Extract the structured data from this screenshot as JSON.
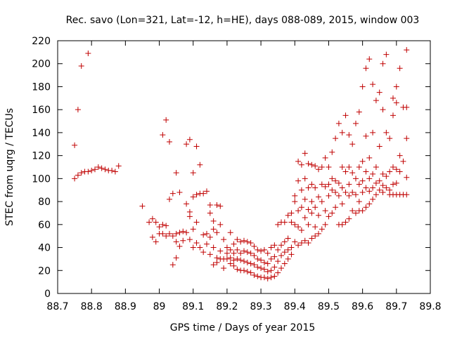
{
  "chart_data": {
    "type": "scatter",
    "title": "Rec. savo (Lon=321, Lat=-12, h=HE), days 088-089, 2015, window 003",
    "xlabel": "GPS time / Days of year 2015",
    "ylabel": "STEC from uqrg / TECUs",
    "xlim": [
      88.7,
      89.8
    ],
    "ylim": [
      0,
      220
    ],
    "xticks": [
      "88.7",
      "88.8",
      "88.9",
      "89",
      "89.1",
      "89.2",
      "89.3",
      "89.4",
      "89.5",
      "89.6",
      "89.7",
      "89.8"
    ],
    "yticks": [
      "0",
      "20",
      "40",
      "60",
      "80",
      "100",
      "120",
      "140",
      "160",
      "180",
      "200",
      "220"
    ],
    "grid": false,
    "legend": "none",
    "marker": "plus",
    "color": "#c00000",
    "points": [
      [
        88.75,
        129
      ],
      [
        88.75,
        100
      ],
      [
        88.76,
        160
      ],
      [
        88.76,
        103
      ],
      [
        88.77,
        198
      ],
      [
        88.77,
        105
      ],
      [
        88.78,
        106
      ],
      [
        88.79,
        209
      ],
      [
        88.79,
        106
      ],
      [
        88.8,
        107
      ],
      [
        88.81,
        108
      ],
      [
        88.82,
        110
      ],
      [
        88.83,
        109
      ],
      [
        88.84,
        108
      ],
      [
        88.85,
        107
      ],
      [
        88.86,
        107
      ],
      [
        88.87,
        106
      ],
      [
        88.88,
        111
      ],
      [
        88.95,
        76
      ],
      [
        88.97,
        62
      ],
      [
        88.98,
        65
      ],
      [
        88.98,
        49
      ],
      [
        88.99,
        62
      ],
      [
        88.99,
        45
      ],
      [
        89.0,
        58
      ],
      [
        89.0,
        52
      ],
      [
        89.01,
        138
      ],
      [
        89.01,
        60
      ],
      [
        89.01,
        52
      ],
      [
        89.02,
        151
      ],
      [
        89.02,
        59
      ],
      [
        89.02,
        50
      ],
      [
        89.03,
        132
      ],
      [
        89.03,
        82
      ],
      [
        89.03,
        52
      ],
      [
        89.04,
        87
      ],
      [
        89.04,
        50
      ],
      [
        89.04,
        25
      ],
      [
        89.05,
        105
      ],
      [
        89.05,
        52
      ],
      [
        89.05,
        31
      ],
      [
        89.05,
        45
      ],
      [
        89.06,
        88
      ],
      [
        89.06,
        53
      ],
      [
        89.06,
        41
      ],
      [
        89.07,
        54
      ],
      [
        89.07,
        46
      ],
      [
        89.08,
        130
      ],
      [
        89.08,
        78
      ],
      [
        89.08,
        53
      ],
      [
        89.09,
        134
      ],
      [
        89.09,
        71
      ],
      [
        89.09,
        67
      ],
      [
        89.09,
        47
      ],
      [
        89.1,
        105
      ],
      [
        89.1,
        84
      ],
      [
        89.1,
        56
      ],
      [
        89.1,
        40
      ],
      [
        89.11,
        128
      ],
      [
        89.11,
        86
      ],
      [
        89.11,
        62
      ],
      [
        89.11,
        44
      ],
      [
        89.12,
        112
      ],
      [
        89.12,
        87
      ],
      [
        89.12,
        40
      ],
      [
        89.13,
        87
      ],
      [
        89.13,
        51
      ],
      [
        89.13,
        36
      ],
      [
        89.14,
        89
      ],
      [
        89.14,
        52
      ],
      [
        89.14,
        43
      ],
      [
        89.15,
        77
      ],
      [
        89.15,
        70
      ],
      [
        89.15,
        49
      ],
      [
        89.15,
        34
      ],
      [
        89.16,
        63
      ],
      [
        89.16,
        56
      ],
      [
        89.16,
        40
      ],
      [
        89.16,
        25
      ],
      [
        89.17,
        77
      ],
      [
        89.17,
        53
      ],
      [
        89.17,
        31
      ],
      [
        89.17,
        27
      ],
      [
        89.18,
        76
      ],
      [
        89.18,
        60
      ],
      [
        89.18,
        37
      ],
      [
        89.18,
        30
      ],
      [
        89.19,
        47
      ],
      [
        89.19,
        30
      ],
      [
        89.19,
        22
      ],
      [
        89.2,
        40
      ],
      [
        89.2,
        35
      ],
      [
        89.2,
        30
      ],
      [
        89.21,
        53
      ],
      [
        89.21,
        38
      ],
      [
        89.21,
        31
      ],
      [
        89.21,
        26
      ],
      [
        89.22,
        43
      ],
      [
        89.22,
        35
      ],
      [
        89.22,
        29
      ],
      [
        89.22,
        24
      ],
      [
        89.23,
        47
      ],
      [
        89.23,
        38
      ],
      [
        89.23,
        30
      ],
      [
        89.23,
        21
      ],
      [
        89.24,
        45
      ],
      [
        89.24,
        35
      ],
      [
        89.24,
        29
      ],
      [
        89.24,
        20
      ],
      [
        89.25,
        46
      ],
      [
        89.25,
        37
      ],
      [
        89.25,
        28
      ],
      [
        89.25,
        20
      ],
      [
        89.26,
        45
      ],
      [
        89.26,
        36
      ],
      [
        89.26,
        27
      ],
      [
        89.26,
        19
      ],
      [
        89.27,
        44
      ],
      [
        89.27,
        35
      ],
      [
        89.27,
        26
      ],
      [
        89.27,
        18
      ],
      [
        89.28,
        41
      ],
      [
        89.28,
        33
      ],
      [
        89.28,
        25
      ],
      [
        89.28,
        16
      ],
      [
        89.29,
        38
      ],
      [
        89.29,
        30
      ],
      [
        89.29,
        23
      ],
      [
        89.29,
        15
      ],
      [
        89.3,
        37
      ],
      [
        89.3,
        29
      ],
      [
        89.3,
        22
      ],
      [
        89.3,
        14
      ],
      [
        89.31,
        38
      ],
      [
        89.31,
        27
      ],
      [
        89.31,
        21
      ],
      [
        89.31,
        14
      ],
      [
        89.32,
        35
      ],
      [
        89.32,
        26
      ],
      [
        89.32,
        19
      ],
      [
        89.32,
        13
      ],
      [
        89.33,
        40
      ],
      [
        89.33,
        30
      ],
      [
        89.33,
        20
      ],
      [
        89.33,
        14
      ],
      [
        89.34,
        42
      ],
      [
        89.34,
        32
      ],
      [
        89.34,
        23
      ],
      [
        89.34,
        15
      ],
      [
        89.35,
        60
      ],
      [
        89.35,
        38
      ],
      [
        89.35,
        28
      ],
      [
        89.35,
        18
      ],
      [
        89.36,
        62
      ],
      [
        89.36,
        42
      ],
      [
        89.36,
        33
      ],
      [
        89.36,
        22
      ],
      [
        89.37,
        62
      ],
      [
        89.37,
        45
      ],
      [
        89.37,
        36
      ],
      [
        89.37,
        26
      ],
      [
        89.38,
        68
      ],
      [
        89.38,
        48
      ],
      [
        89.38,
        38
      ],
      [
        89.38,
        30
      ],
      [
        89.39,
        70
      ],
      [
        89.39,
        62
      ],
      [
        89.39,
        40
      ],
      [
        89.39,
        34
      ],
      [
        89.4,
        85
      ],
      [
        89.4,
        80
      ],
      [
        89.4,
        60
      ],
      [
        89.4,
        45
      ],
      [
        89.41,
        115
      ],
      [
        89.41,
        98
      ],
      [
        89.41,
        72
      ],
      [
        89.41,
        58
      ],
      [
        89.41,
        42
      ],
      [
        89.42,
        112
      ],
      [
        89.42,
        90
      ],
      [
        89.42,
        75
      ],
      [
        89.42,
        55
      ],
      [
        89.42,
        44
      ],
      [
        89.43,
        122
      ],
      [
        89.43,
        100
      ],
      [
        89.43,
        82
      ],
      [
        89.43,
        66
      ],
      [
        89.43,
        46
      ],
      [
        89.44,
        113
      ],
      [
        89.44,
        92
      ],
      [
        89.44,
        73
      ],
      [
        89.44,
        60
      ],
      [
        89.44,
        44
      ],
      [
        89.45,
        112
      ],
      [
        89.45,
        95
      ],
      [
        89.45,
        80
      ],
      [
        89.45,
        70
      ],
      [
        89.45,
        48
      ],
      [
        89.46,
        111
      ],
      [
        89.46,
        92
      ],
      [
        89.46,
        75
      ],
      [
        89.46,
        58
      ],
      [
        89.46,
        50
      ],
      [
        89.47,
        108
      ],
      [
        89.47,
        84
      ],
      [
        89.47,
        68
      ],
      [
        89.47,
        52
      ],
      [
        89.48,
        110
      ],
      [
        89.48,
        95
      ],
      [
        89.48,
        80
      ],
      [
        89.48,
        56
      ],
      [
        89.49,
        118
      ],
      [
        89.49,
        93
      ],
      [
        89.49,
        72
      ],
      [
        89.49,
        60
      ],
      [
        89.5,
        110
      ],
      [
        89.5,
        95
      ],
      [
        89.5,
        85
      ],
      [
        89.5,
        67
      ],
      [
        89.51,
        123
      ],
      [
        89.51,
        100
      ],
      [
        89.51,
        90
      ],
      [
        89.51,
        70
      ],
      [
        89.52,
        135
      ],
      [
        89.52,
        98
      ],
      [
        89.52,
        88
      ],
      [
        89.52,
        75
      ],
      [
        89.53,
        148
      ],
      [
        89.53,
        96
      ],
      [
        89.53,
        85
      ],
      [
        89.53,
        60
      ],
      [
        89.54,
        140
      ],
      [
        89.54,
        110
      ],
      [
        89.54,
        92
      ],
      [
        89.54,
        78
      ],
      [
        89.54,
        60
      ],
      [
        89.55,
        155
      ],
      [
        89.55,
        106
      ],
      [
        89.55,
        88
      ],
      [
        89.55,
        62
      ],
      [
        89.56,
        138
      ],
      [
        89.56,
        110
      ],
      [
        89.56,
        95
      ],
      [
        89.56,
        85
      ],
      [
        89.56,
        65
      ],
      [
        89.57,
        130
      ],
      [
        89.57,
        105
      ],
      [
        89.57,
        88
      ],
      [
        89.57,
        72
      ],
      [
        89.58,
        148
      ],
      [
        89.58,
        100
      ],
      [
        89.58,
        86
      ],
      [
        89.58,
        70
      ],
      [
        89.59,
        158
      ],
      [
        89.59,
        110
      ],
      [
        89.59,
        95
      ],
      [
        89.59,
        80
      ],
      [
        89.59,
        72
      ],
      [
        89.6,
        180
      ],
      [
        89.6,
        115
      ],
      [
        89.6,
        98
      ],
      [
        89.6,
        88
      ],
      [
        89.6,
        72
      ],
      [
        89.61,
        196
      ],
      [
        89.61,
        137
      ],
      [
        89.61,
        106
      ],
      [
        89.61,
        92
      ],
      [
        89.61,
        75
      ],
      [
        89.62,
        204
      ],
      [
        89.62,
        118
      ],
      [
        89.62,
        100
      ],
      [
        89.62,
        89
      ],
      [
        89.62,
        78
      ],
      [
        89.63,
        182
      ],
      [
        89.63,
        140
      ],
      [
        89.63,
        104
      ],
      [
        89.63,
        92
      ],
      [
        89.63,
        82
      ],
      [
        89.64,
        168
      ],
      [
        89.64,
        110
      ],
      [
        89.64,
        96
      ],
      [
        89.64,
        86
      ],
      [
        89.65,
        175
      ],
      [
        89.65,
        128
      ],
      [
        89.65,
        98
      ],
      [
        89.65,
        90
      ],
      [
        89.66,
        200
      ],
      [
        89.66,
        160
      ],
      [
        89.66,
        104
      ],
      [
        89.66,
        94
      ],
      [
        89.66,
        88
      ],
      [
        89.67,
        208
      ],
      [
        89.67,
        140
      ],
      [
        89.67,
        102
      ],
      [
        89.67,
        92
      ],
      [
        89.68,
        135
      ],
      [
        89.68,
        106
      ],
      [
        89.68,
        90
      ],
      [
        89.68,
        86
      ],
      [
        89.69,
        170
      ],
      [
        89.69,
        155
      ],
      [
        89.69,
        110
      ],
      [
        89.69,
        95
      ],
      [
        89.69,
        86
      ],
      [
        89.7,
        180
      ],
      [
        89.7,
        166
      ],
      [
        89.7,
        108
      ],
      [
        89.7,
        96
      ],
      [
        89.7,
        86
      ],
      [
        89.71,
        196
      ],
      [
        89.71,
        120
      ],
      [
        89.71,
        106
      ],
      [
        89.71,
        86
      ],
      [
        89.72,
        162
      ],
      [
        89.72,
        115
      ],
      [
        89.72,
        86
      ],
      [
        89.73,
        212
      ],
      [
        89.73,
        162
      ],
      [
        89.73,
        135
      ],
      [
        89.73,
        101
      ],
      [
        89.73,
        86
      ]
    ]
  }
}
